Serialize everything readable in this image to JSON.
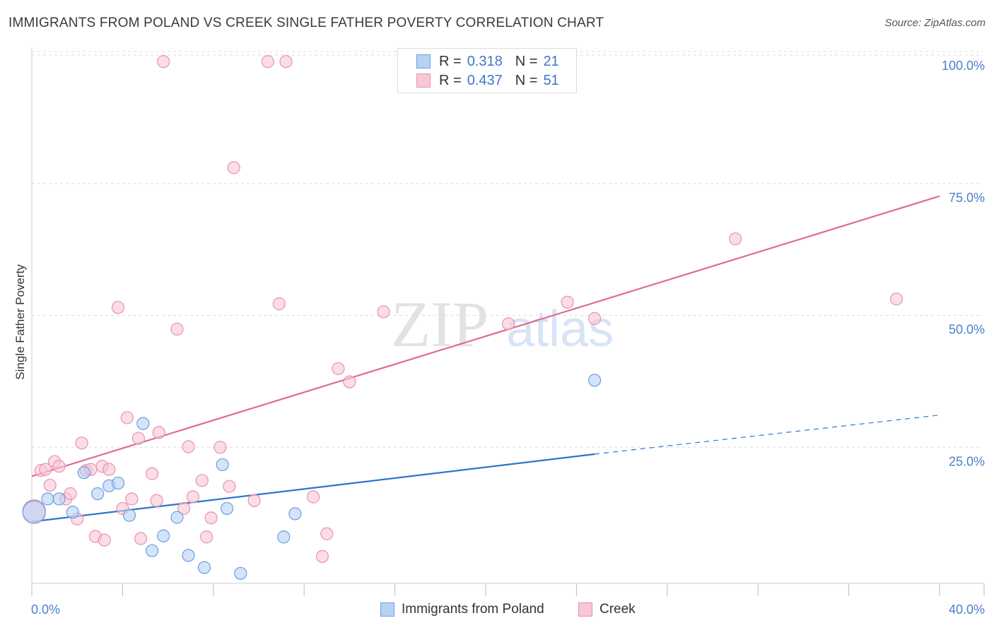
{
  "title": "IMMIGRANTS FROM POLAND VS CREEK SINGLE FATHER POVERTY CORRELATION CHART",
  "source": "Source: ZipAtlas.com",
  "watermark": {
    "zip": "ZIP",
    "atlas": "atlas"
  },
  "legend": {
    "rows": [
      {
        "r_label": "R =",
        "r_value": "0.318",
        "n_label": "N =",
        "n_value": "21"
      },
      {
        "r_label": "R =",
        "r_value": "0.437",
        "n_label": "N =",
        "n_value": "51"
      }
    ]
  },
  "bottom_legend": {
    "series1": "Immigrants from Poland",
    "series2": "Creek"
  },
  "colors": {
    "poland_fill": "#b8d2f4",
    "poland_stroke": "#6b9ee0",
    "poland_line": "#2f74d0",
    "creek_fill": "#f9c6d6",
    "creek_stroke": "#e892ae",
    "creek_line": "#e06b92",
    "tick_text": "#4a7fc9",
    "grid": "#dddddd"
  },
  "chart_data": {
    "type": "scatter",
    "title": "IMMIGRANTS FROM POLAND VS CREEK SINGLE FATHER POVERTY CORRELATION CHART",
    "xlabel": "",
    "ylabel": "Single Father Poverty",
    "xlim": [
      0,
      40
    ],
    "ylim": [
      0,
      100
    ],
    "x_tick_labels": [
      {
        "value": 0,
        "label": "0.0%"
      },
      {
        "value": 40,
        "label": "40.0%"
      }
    ],
    "y_tick_labels": [
      {
        "value": 25,
        "label": "25.0%"
      },
      {
        "value": 50,
        "label": "50.0%"
      },
      {
        "value": 75,
        "label": "75.0%"
      },
      {
        "value": 100,
        "label": "100.0%"
      }
    ],
    "series": [
      {
        "name": "Immigrants from Poland",
        "R": 0.318,
        "N": 21,
        "points": [
          [
            0.1,
            13.5,
            "large"
          ],
          [
            0.7,
            16.0
          ],
          [
            1.2,
            16.0
          ],
          [
            1.8,
            13.5
          ],
          [
            2.3,
            21.0
          ],
          [
            2.9,
            17.0
          ],
          [
            3.4,
            18.5
          ],
          [
            3.8,
            19.0
          ],
          [
            4.3,
            12.9
          ],
          [
            4.9,
            30.3
          ],
          [
            5.3,
            6.2
          ],
          [
            5.8,
            9.0
          ],
          [
            6.4,
            12.5
          ],
          [
            6.9,
            5.3
          ],
          [
            7.6,
            3.0
          ],
          [
            8.4,
            22.5
          ],
          [
            8.6,
            14.2
          ],
          [
            9.2,
            1.9
          ],
          [
            11.1,
            8.8
          ],
          [
            11.6,
            13.2
          ],
          [
            24.8,
            38.5
          ]
        ],
        "trend": {
          "x0": 0,
          "y0": 11.7,
          "x1": 24.8,
          "y1": 24.5,
          "dash_x1": 40,
          "dash_y1": 31.9
        }
      },
      {
        "name": "Creek",
        "R": 0.437,
        "N": 51,
        "points": [
          [
            0.1,
            13.7,
            "large"
          ],
          [
            0.4,
            21.4
          ],
          [
            0.6,
            21.6
          ],
          [
            0.8,
            18.6
          ],
          [
            1.0,
            23.1
          ],
          [
            1.2,
            22.2
          ],
          [
            1.5,
            16.0
          ],
          [
            1.7,
            17.0
          ],
          [
            2.0,
            12.2
          ],
          [
            2.2,
            26.6
          ],
          [
            2.4,
            21.4
          ],
          [
            2.6,
            21.6
          ],
          [
            2.8,
            8.9
          ],
          [
            3.1,
            22.2
          ],
          [
            3.2,
            8.2
          ],
          [
            3.4,
            21.6
          ],
          [
            3.8,
            52.3
          ],
          [
            4.0,
            14.2
          ],
          [
            4.2,
            31.4
          ],
          [
            4.4,
            16.0
          ],
          [
            4.7,
            27.5
          ],
          [
            4.8,
            8.5
          ],
          [
            5.3,
            20.8
          ],
          [
            5.5,
            15.7
          ],
          [
            5.6,
            28.6
          ],
          [
            5.8,
            98.9
          ],
          [
            6.4,
            48.2
          ],
          [
            6.7,
            14.2
          ],
          [
            6.9,
            25.9
          ],
          [
            7.1,
            16.4
          ],
          [
            7.5,
            19.5
          ],
          [
            7.7,
            8.8
          ],
          [
            7.9,
            12.4
          ],
          [
            8.3,
            25.8
          ],
          [
            8.7,
            18.4
          ],
          [
            8.9,
            78.8
          ],
          [
            9.8,
            15.7
          ],
          [
            10.4,
            98.9
          ],
          [
            10.9,
            53.0
          ],
          [
            11.2,
            98.9
          ],
          [
            12.4,
            16.4
          ],
          [
            12.8,
            5.1
          ],
          [
            13.0,
            9.4
          ],
          [
            13.5,
            40.7
          ],
          [
            14.0,
            38.2
          ],
          [
            15.5,
            51.5
          ],
          [
            21.0,
            49.2
          ],
          [
            23.6,
            53.3
          ],
          [
            24.8,
            50.2
          ],
          [
            31.0,
            65.3
          ],
          [
            38.1,
            53.9
          ]
        ],
        "trend": {
          "x0": 0,
          "y0": 20.3,
          "x1": 40,
          "y1": 73.4
        }
      }
    ]
  }
}
